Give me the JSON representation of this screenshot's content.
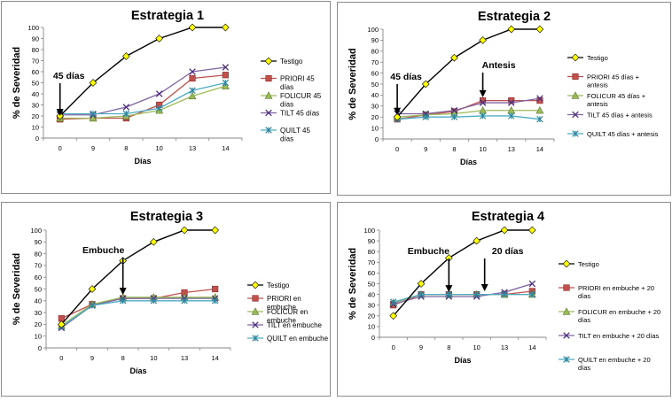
{
  "chart_data": [
    {
      "type": "line",
      "title": "Estrategia 1",
      "xlabel": "Días",
      "ylabel": "% de Severidad",
      "categories": [
        "0",
        "9",
        "8",
        "10",
        "13",
        "14"
      ],
      "ylim": [
        0,
        100
      ],
      "yticks": [
        0,
        10,
        20,
        30,
        40,
        50,
        60,
        70,
        80,
        90,
        100
      ],
      "legend_position": "right",
      "series": [
        {
          "name": "Testigo",
          "values": [
            20,
            50,
            74,
            90,
            100,
            100
          ],
          "color": "#000000",
          "marker": "diamond",
          "markerColor": "#FFFF00"
        },
        {
          "name": "PRIORI 45 días",
          "values": [
            17,
            18,
            18,
            30,
            54,
            57
          ],
          "color": "#C0504D",
          "marker": "square",
          "markerColor": "#C0504D"
        },
        {
          "name": "FOLICUR 45 días",
          "values": [
            18,
            18,
            20,
            25,
            38,
            47
          ],
          "color": "#9BBB59",
          "marker": "triangle",
          "markerColor": "#9BBB59"
        },
        {
          "name": "TILT 45 días",
          "values": [
            21,
            21,
            28,
            40,
            60,
            64
          ],
          "color": "#8064A2",
          "marker": "x",
          "markerColor": "#4B2C7C"
        },
        {
          "name": "QUILT 45 días",
          "values": [
            22,
            22,
            22,
            27,
            43,
            50
          ],
          "color": "#4BACC6",
          "marker": "star",
          "markerColor": "#31859C"
        }
      ],
      "annotations": [
        {
          "text": "45 días",
          "category": "0",
          "arrow_to": 20
        }
      ]
    },
    {
      "type": "line",
      "title": "Estrategia 2",
      "xlabel": "Días",
      "ylabel": "% de Severidad",
      "categories": [
        "0",
        "9",
        "8",
        "10",
        "13",
        "14"
      ],
      "ylim": [
        0,
        100
      ],
      "yticks": [
        0,
        10,
        20,
        30,
        40,
        50,
        60,
        70,
        80,
        90,
        100
      ],
      "legend_position": "right",
      "series": [
        {
          "name": "Testigo",
          "values": [
            20,
            50,
            74,
            90,
            100,
            100
          ],
          "color": "#000000",
          "marker": "diamond",
          "markerColor": "#FFFF00"
        },
        {
          "name": "PRIORI 45 días + antesis",
          "values": [
            18,
            22,
            25,
            35,
            35,
            35
          ],
          "color": "#C0504D",
          "marker": "square",
          "markerColor": "#C0504D"
        },
        {
          "name": "FOLICUR 45 días + antesis",
          "values": [
            20,
            22,
            23,
            26,
            26,
            26
          ],
          "color": "#9BBB59",
          "marker": "triangle",
          "markerColor": "#9BBB59"
        },
        {
          "name": "TILT 45 días + antesis",
          "values": [
            23,
            23,
            26,
            33,
            33,
            37
          ],
          "color": "#8064A2",
          "marker": "x",
          "markerColor": "#4B2C7C"
        },
        {
          "name": "QUILT 45 días + antesis",
          "values": [
            18,
            20,
            20,
            21,
            21,
            18
          ],
          "color": "#4BACC6",
          "marker": "star",
          "markerColor": "#31859C"
        }
      ],
      "annotations": [
        {
          "text": "45 días",
          "category": "0",
          "arrow_to": 22
        },
        {
          "text": "Antesis",
          "category": "10",
          "arrow_to": 38
        }
      ]
    },
    {
      "type": "line",
      "title": "Estrategia 3",
      "xlabel": "Días",
      "ylabel": "% de Severidad",
      "categories": [
        "0",
        "9",
        "8",
        "10",
        "13",
        "14"
      ],
      "ylim": [
        0,
        100
      ],
      "yticks": [
        0,
        10,
        20,
        30,
        40,
        50,
        60,
        70,
        80,
        90,
        100
      ],
      "legend_position": "right",
      "series": [
        {
          "name": "Testigo",
          "values": [
            20,
            50,
            74,
            90,
            100,
            100
          ],
          "color": "#000000",
          "marker": "diamond",
          "markerColor": "#FFFF00"
        },
        {
          "name": "PRIORI en embuche",
          "values": [
            25,
            37,
            42,
            42,
            47,
            50
          ],
          "color": "#C0504D",
          "marker": "square",
          "markerColor": "#C0504D"
        },
        {
          "name": "FOLICUR en embuche",
          "values": [
            19,
            37,
            43,
            43,
            43,
            43
          ],
          "color": "#9BBB59",
          "marker": "triangle",
          "markerColor": "#9BBB59"
        },
        {
          "name": "TILT en embuche",
          "values": [
            17,
            36,
            42,
            42,
            42,
            42
          ],
          "color": "#8064A2",
          "marker": "x",
          "markerColor": "#4B2C7C"
        },
        {
          "name": "QUILT en embuche",
          "values": [
            18,
            36,
            40,
            40,
            40,
            40
          ],
          "color": "#4BACC6",
          "marker": "star",
          "markerColor": "#31859C"
        }
      ],
      "annotations": [
        {
          "text": "Embuche",
          "category": "8",
          "arrow_to": 45
        }
      ]
    },
    {
      "type": "line",
      "title": "Estrategia 4",
      "xlabel": "Días",
      "ylabel": "% de Severidad",
      "categories": [
        "0",
        "9",
        "8",
        "10",
        "13",
        "14"
      ],
      "ylim": [
        0,
        100
      ],
      "yticks": [
        0,
        10,
        20,
        30,
        40,
        50,
        60,
        70,
        80,
        90,
        100
      ],
      "legend_position": "right",
      "series": [
        {
          "name": "Testigo",
          "values": [
            20,
            50,
            74,
            90,
            100,
            100
          ],
          "color": "#000000",
          "marker": "diamond",
          "markerColor": "#FFFF00"
        },
        {
          "name": "PRIORI en embuche + 20 días",
          "values": [
            30,
            40,
            40,
            40,
            40,
            43
          ],
          "color": "#C0504D",
          "marker": "square",
          "markerColor": "#C0504D"
        },
        {
          "name": "FOLICUR en embuche + 20 días",
          "values": [
            32,
            40,
            40,
            40,
            40,
            40
          ],
          "color": "#9BBB59",
          "marker": "triangle",
          "markerColor": "#9BBB59"
        },
        {
          "name": "TILT en embuche + 20 días",
          "values": [
            31,
            38,
            38,
            38,
            42,
            50
          ],
          "color": "#8064A2",
          "marker": "x",
          "markerColor": "#4B2C7C"
        },
        {
          "name": "QUILT en embuche + 20 días",
          "values": [
            33,
            40,
            40,
            40,
            40,
            40
          ],
          "color": "#4BACC6",
          "marker": "star",
          "markerColor": "#31859C"
        }
      ],
      "annotations": [
        {
          "text": "Embuche",
          "category": "8",
          "arrow_to": 42
        },
        {
          "text": "20 días",
          "category": "10",
          "arrow_to": 43
        }
      ]
    }
  ]
}
